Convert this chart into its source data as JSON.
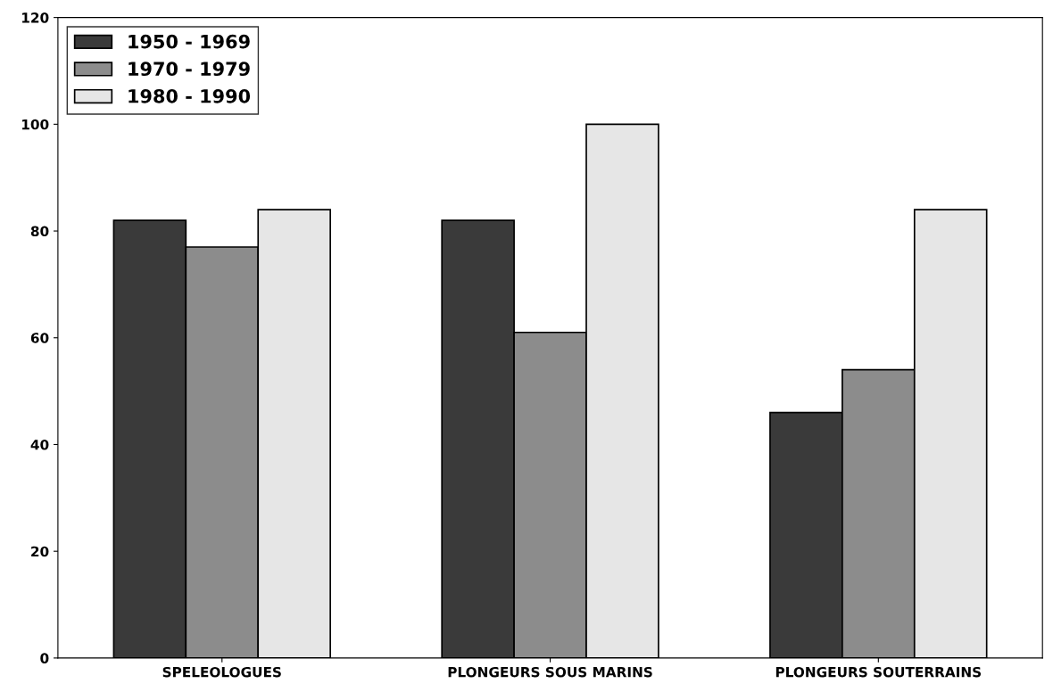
{
  "chart_data": {
    "type": "bar",
    "categories": [
      "SPELEOLOGUES",
      "PLONGEURS SOUS MARINS",
      "PLONGEURS SOUTERRAINS"
    ],
    "series": [
      {
        "name": "1950 - 1969",
        "color": "#3a3a3a",
        "values": [
          82,
          82,
          46
        ]
      },
      {
        "name": "1970 - 1979",
        "color": "#8c8c8c",
        "values": [
          77,
          61,
          54
        ]
      },
      {
        "name": "1980 - 1990",
        "color": "#e6e6e6",
        "values": [
          84,
          100,
          84
        ]
      }
    ],
    "ylim": [
      0,
      120
    ],
    "yticks": [
      0,
      20,
      40,
      60,
      80,
      100,
      120
    ],
    "grid": false,
    "legend": "top left"
  }
}
